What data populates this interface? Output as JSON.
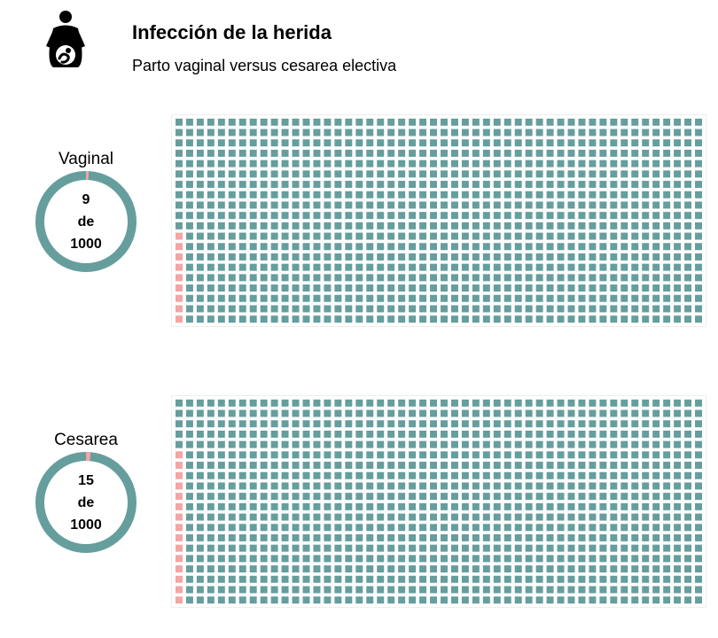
{
  "header": {
    "title": "Infección de la herida",
    "subtitle": "Parto vaginal versus cesarea electiva",
    "icon": "pregnant-woman-icon"
  },
  "colors": {
    "affected": "#f4a5a5",
    "unaffected": "#659e9d",
    "grid_border": "#eeeeee"
  },
  "chart_data": [
    {
      "type": "waffle",
      "label": "Vaginal",
      "affected": 9,
      "total": 1000,
      "rows": 20,
      "columns": 50,
      "fill_order": "columns-bottom-to-top",
      "donut_text": {
        "count": "9",
        "connector": "de",
        "total": "1000"
      }
    },
    {
      "type": "waffle",
      "label": "Cesarea",
      "affected": 15,
      "total": 1000,
      "rows": 20,
      "columns": 50,
      "fill_order": "columns-bottom-to-top",
      "donut_text": {
        "count": "15",
        "connector": "de",
        "total": "1000"
      }
    }
  ]
}
